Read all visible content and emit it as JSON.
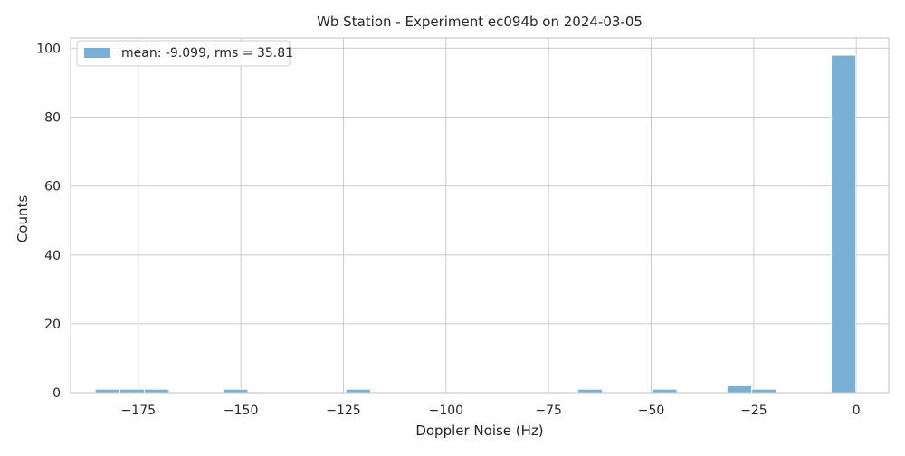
{
  "chart_data": {
    "type": "bar",
    "title": "Wb Station - Experiment ec094b on 2024-03-05",
    "xlabel": "Doppler Noise (Hz)",
    "ylabel": "Counts",
    "xlim": [
      -191.5,
      7.9
    ],
    "ylim": [
      0,
      103
    ],
    "x_ticks": [
      -175,
      -150,
      -125,
      -100,
      -75,
      -50,
      -25,
      0
    ],
    "x_tick_labels": [
      "−175",
      "−150",
      "−125",
      "−100",
      "−75",
      "−50",
      "−25",
      "0"
    ],
    "y_ticks": [
      0,
      20,
      40,
      60,
      80,
      100
    ],
    "y_tick_labels": [
      "0",
      "20",
      "40",
      "60",
      "80",
      "100"
    ],
    "grid": true,
    "legend": {
      "location": "top-left"
    },
    "bin_width": 6.0,
    "series": [
      {
        "name": "mean: -9.099, rms = 35.81",
        "color": "#7aafd6",
        "bins": [
          {
            "x0": -185.5,
            "x1": -179.5,
            "value": 1
          },
          {
            "x0": -179.5,
            "x1": -173.5,
            "value": 1
          },
          {
            "x0": -173.5,
            "x1": -167.5,
            "value": 1
          },
          {
            "x0": -154.3,
            "x1": -148.3,
            "value": 1
          },
          {
            "x0": -124.4,
            "x1": -118.4,
            "value": 1
          },
          {
            "x0": -67.9,
            "x1": -61.9,
            "value": 1
          },
          {
            "x0": -49.7,
            "x1": -43.7,
            "value": 1
          },
          {
            "x0": -31.5,
            "x1": -25.5,
            "value": 2
          },
          {
            "x0": -25.5,
            "x1": -19.5,
            "value": 1
          },
          {
            "x0": -6.1,
            "x1": -0.1,
            "value": 98
          }
        ]
      }
    ]
  }
}
